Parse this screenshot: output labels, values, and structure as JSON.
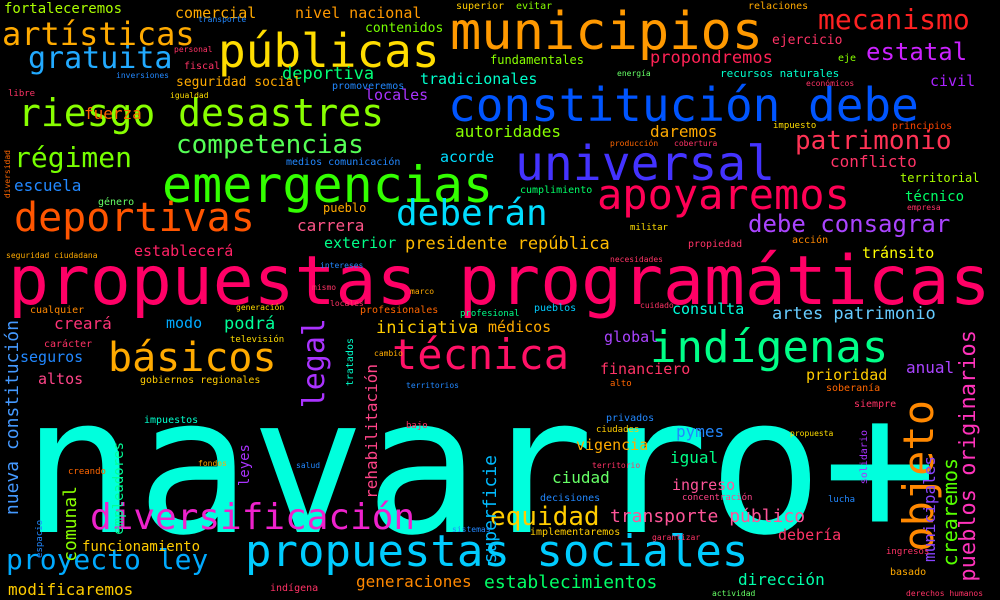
{
  "cloud": {
    "background": "#000000",
    "words": [
      {
        "text": "navarro+",
        "color": "#00ffdd"
      },
      {
        "text": "propuestas programáticas",
        "color": "#ff0066"
      },
      {
        "text": "constitución debe",
        "color": "#0055ff"
      },
      {
        "text": "emergencias",
        "color": "#33ff00"
      },
      {
        "text": "universal",
        "color": "#4433ff"
      },
      {
        "text": "públicas",
        "color": "#ffdd00"
      },
      {
        "text": "municipios",
        "color": "#ff9900"
      },
      {
        "text": "propuestas sociales",
        "color": "#00ccff"
      },
      {
        "text": "apoyaremos",
        "color": "#ff0055"
      },
      {
        "text": "riesgo desastres",
        "color": "#88ff00"
      },
      {
        "text": "deportivas",
        "color": "#ff5500"
      },
      {
        "text": "indígenas",
        "color": "#00ff88"
      },
      {
        "text": "diversificación",
        "color": "#ee22cc"
      },
      {
        "text": "técnica",
        "color": "#ff1166"
      },
      {
        "text": "básicos",
        "color": "#ffaa00"
      },
      {
        "text": "deberán",
        "color": "#00ddff"
      },
      {
        "text": "objeto",
        "color": "#ff8800"
      },
      {
        "text": "artísticas",
        "color": "#ffaa00"
      },
      {
        "text": "mecanismo",
        "color": "#ff2222"
      },
      {
        "text": "gratuita",
        "color": "#22aaff"
      },
      {
        "text": "estatal",
        "color": "#cc22ff"
      },
      {
        "text": "competencias",
        "color": "#55ff55"
      },
      {
        "text": "régimen",
        "color": "#77ff00"
      },
      {
        "text": "patrimonio",
        "color": "#ff3355"
      },
      {
        "text": "debe consagrar",
        "color": "#aa44ff"
      },
      {
        "text": "proyecto ley",
        "color": "#00aaff"
      },
      {
        "text": "equidad",
        "color": "#ffcc00"
      },
      {
        "text": "legal",
        "color": "#aa33ff"
      },
      {
        "text": "nueva constitución",
        "color": "#4499ff"
      },
      {
        "text": "pueblos originarios",
        "color": "#ff33bb"
      },
      {
        "text": "crearemos",
        "color": "#55ff00"
      },
      {
        "text": "municipales",
        "color": "#8844ff"
      },
      {
        "text": "rehabilitación",
        "color": "#ff4488"
      },
      {
        "text": "superficie",
        "color": "#00bbff"
      },
      {
        "text": "empleadores",
        "color": "#00ff99"
      },
      {
        "text": "leyes",
        "color": "#aa33ff"
      },
      {
        "text": "comunal",
        "color": "#88ff00"
      },
      {
        "text": "transporte público",
        "color": "#ff5599"
      },
      {
        "text": "establecimientos",
        "color": "#00ff66"
      },
      {
        "text": "modificaremos",
        "color": "#ffcc00"
      },
      {
        "text": "generaciones",
        "color": "#ff8800"
      },
      {
        "text": "dirección",
        "color": "#00ffaa"
      },
      {
        "text": "fortaleceremos",
        "color": "#aaff00"
      },
      {
        "text": "comercial",
        "color": "#ffaa00"
      },
      {
        "text": "nivel nacional",
        "color": "#ff9900"
      },
      {
        "text": "contenidos",
        "color": "#77ff00"
      },
      {
        "text": "ejercicio",
        "color": "#ff3366"
      },
      {
        "text": "deportiva",
        "color": "#00ff77"
      },
      {
        "text": "fundamentales",
        "color": "#88ff00"
      },
      {
        "text": "propondremos",
        "color": "#ff2255"
      },
      {
        "text": "tradicionales",
        "color": "#00ffcc"
      },
      {
        "text": "civil",
        "color": "#aa22ff"
      },
      {
        "text": "seguridad social",
        "color": "#ffaa00"
      },
      {
        "text": "fuerza",
        "color": "#ff6600"
      },
      {
        "text": "locales",
        "color": "#aa33ff"
      },
      {
        "text": "autoridades",
        "color": "#88ff00"
      },
      {
        "text": "daremos",
        "color": "#ffaa00"
      },
      {
        "text": "acorde",
        "color": "#00ddff"
      },
      {
        "text": "conflicto",
        "color": "#ff3366"
      },
      {
        "text": "territorial",
        "color": "#aaff00"
      },
      {
        "text": "técnico",
        "color": "#00ff66"
      },
      {
        "text": "escuela",
        "color": "#2288ff"
      },
      {
        "text": "carrera",
        "color": "#ff5588"
      },
      {
        "text": "exterior",
        "color": "#00ff88"
      },
      {
        "text": "presidente república",
        "color": "#ffbb00"
      },
      {
        "text": "establecerá",
        "color": "#ff2266"
      },
      {
        "text": "tránsito",
        "color": "#ffff00"
      },
      {
        "text": "artes patrimonio",
        "color": "#66ccff"
      },
      {
        "text": "consulta",
        "color": "#00ffdd"
      },
      {
        "text": "iniciativa",
        "color": "#ffcc00"
      },
      {
        "text": "médicos",
        "color": "#ffaa00"
      },
      {
        "text": "creará",
        "color": "#ff3377"
      },
      {
        "text": "modo",
        "color": "#00aaff"
      },
      {
        "text": "podrá",
        "color": "#00ff99"
      },
      {
        "text": "global",
        "color": "#aa44ff"
      },
      {
        "text": "financiero",
        "color": "#ff3366"
      },
      {
        "text": "prioridad",
        "color": "#ffcc00"
      },
      {
        "text": "anual",
        "color": "#aa44ff"
      },
      {
        "text": "seguros",
        "color": "#2288ff"
      },
      {
        "text": "altos",
        "color": "#ff4488"
      },
      {
        "text": "pymes",
        "color": "#2288ff"
      },
      {
        "text": "vigencia",
        "color": "#ffaa00"
      },
      {
        "text": "igual",
        "color": "#00ff88"
      },
      {
        "text": "ciudad",
        "color": "#66ff66"
      },
      {
        "text": "ingreso",
        "color": "#ff5599"
      },
      {
        "text": "debería",
        "color": "#ff3366"
      },
      {
        "text": "funcionamiento",
        "color": "#ffcc00"
      },
      {
        "text": "pueblo",
        "color": "#ffaa00"
      },
      {
        "text": "superior",
        "color": "#ffcc00"
      },
      {
        "text": "evitar",
        "color": "#88ff00"
      },
      {
        "text": "relaciones",
        "color": "#ffaa00"
      },
      {
        "text": "eje",
        "color": "#88ff00"
      },
      {
        "text": "recursos naturales",
        "color": "#00ffcc"
      },
      {
        "text": "impuesto",
        "color": "#ffdd00"
      },
      {
        "text": "principios",
        "color": "#ff4400"
      },
      {
        "text": "cumplimiento",
        "color": "#00ff66"
      },
      {
        "text": "género",
        "color": "#66ff66"
      },
      {
        "text": "militar",
        "color": "#ffdd00"
      },
      {
        "text": "propiedad",
        "color": "#ff3366"
      },
      {
        "text": "acción",
        "color": "#ff8800"
      },
      {
        "text": "profesionales",
        "color": "#ff6600"
      },
      {
        "text": "profesional",
        "color": "#00ff88"
      },
      {
        "text": "pueblos",
        "color": "#00ccff"
      },
      {
        "text": "cualquier",
        "color": "#ff8800"
      },
      {
        "text": "carácter",
        "color": "#ff3366"
      },
      {
        "text": "televisión",
        "color": "#ffdd00"
      },
      {
        "text": "tratados",
        "color": "#00ffcc"
      },
      {
        "text": "gobiernos regionales",
        "color": "#ffcc00"
      },
      {
        "text": "soberanía",
        "color": "#ff6600"
      },
      {
        "text": "alto",
        "color": "#ff6600"
      },
      {
        "text": "impuestos",
        "color": "#00ffcc"
      },
      {
        "text": "privados",
        "color": "#2288ff"
      },
      {
        "text": "ciudades",
        "color": "#ffcc00"
      },
      {
        "text": "bajo",
        "color": "#ff3366"
      },
      {
        "text": "propuesta",
        "color": "#ffdd00"
      },
      {
        "text": "siempre",
        "color": "#ff3366"
      },
      {
        "text": "solidario",
        "color": "#aa33ff"
      },
      {
        "text": "decisiones",
        "color": "#2288ff"
      },
      {
        "text": "concentración",
        "color": "#ff4488"
      },
      {
        "text": "lucha",
        "color": "#2288ff"
      },
      {
        "text": "implementaremos",
        "color": "#ffcc00"
      },
      {
        "text": "ingresos",
        "color": "#ff3366"
      },
      {
        "text": "basado",
        "color": "#ffaa00"
      },
      {
        "text": "derechos humanos",
        "color": "#ff3366"
      },
      {
        "text": "indígena",
        "color": "#ff3366"
      },
      {
        "text": "actividad",
        "color": "#66ff66"
      },
      {
        "text": "creando",
        "color": "#ff6600"
      },
      {
        "text": "espacio",
        "color": "#2288ff"
      },
      {
        "text": "libre",
        "color": "#ff3366"
      },
      {
        "text": "igualdad",
        "color": "#ffdd00"
      },
      {
        "text": "fiscal",
        "color": "#ff3366"
      },
      {
        "text": "personal",
        "color": "#ff3366"
      },
      {
        "text": "inversiones",
        "color": "#2288ff"
      },
      {
        "text": "transporte",
        "color": "#2288ff"
      },
      {
        "text": "medios comunicación",
        "color": "#2288ff"
      },
      {
        "text": "promoveremos",
        "color": "#2288ff"
      },
      {
        "text": "seguridad ciudadana",
        "color": "#ffaa00"
      },
      {
        "text": "diversidad",
        "color": "#ff6600"
      },
      {
        "text": "producción",
        "color": "#ff6600"
      },
      {
        "text": "cobertura",
        "color": "#ff3366"
      },
      {
        "text": "empresa",
        "color": "#ff3366"
      },
      {
        "text": "generación",
        "color": "#ffdd00"
      },
      {
        "text": "económicos",
        "color": "#ff3366"
      },
      {
        "text": "energía",
        "color": "#66ff66"
      },
      {
        "text": "territorios",
        "color": "#2288ff"
      },
      {
        "text": "sistemas",
        "color": "#2288ff"
      },
      {
        "text": "territorio",
        "color": "#ff3366"
      },
      {
        "text": "locales",
        "color": "#ff3366"
      },
      {
        "text": "marco",
        "color": "#ffaa00"
      },
      {
        "text": "mismo",
        "color": "#ff3366"
      },
      {
        "text": "cambio",
        "color": "#ffaa00"
      },
      {
        "text": "intereses",
        "color": "#2288ff"
      },
      {
        "text": "cuidado",
        "color": "#ff3366"
      },
      {
        "text": "garantizar",
        "color": "#ff3366"
      },
      {
        "text": "fondos",
        "color": "#ffaa00"
      },
      {
        "text": "salud",
        "color": "#2288ff"
      },
      {
        "text": "necesidades",
        "color": "#ff3366"
      }
    ]
  }
}
